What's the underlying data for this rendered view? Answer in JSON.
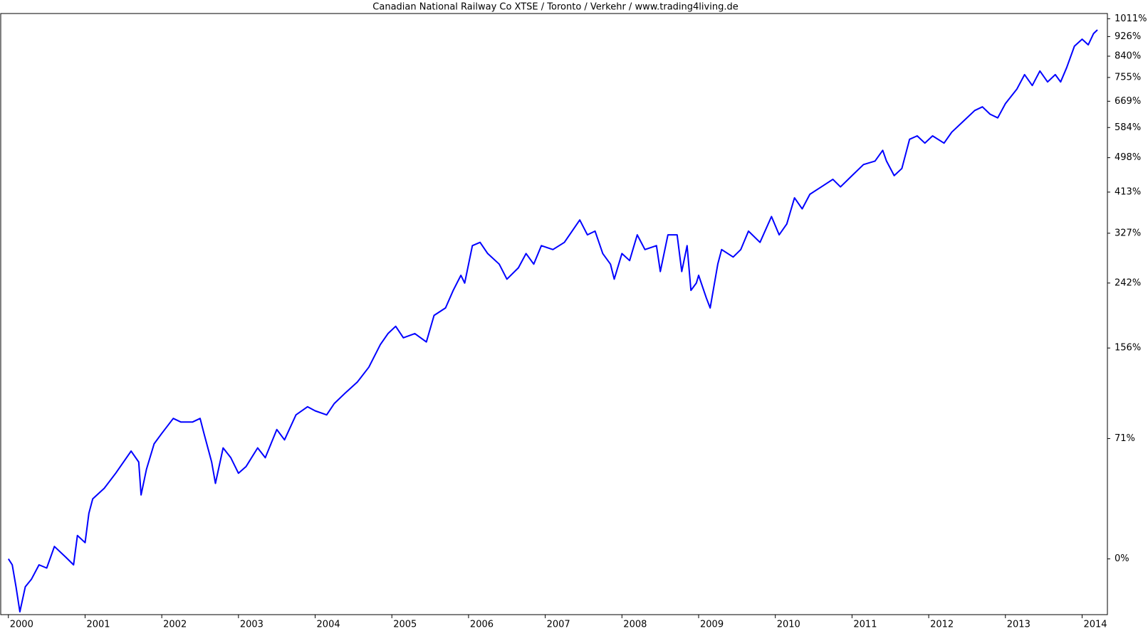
{
  "chart_data": {
    "type": "line",
    "title": "Canadian National Railway Co XTSE / Toronto / Verkehr / www.trading4living.de",
    "y_scale": "log",
    "xlim": [
      1999.9,
      2014.33
    ],
    "xticks": [
      2000,
      2001,
      2002,
      2003,
      2004,
      2005,
      2006,
      2007,
      2008,
      2009,
      2010,
      2011,
      2012,
      2013,
      2014
    ],
    "ylim": [
      -22,
      1037
    ],
    "yticks": [
      {
        "value": 0,
        "label": "0%"
      },
      {
        "value": 71,
        "label": "71%"
      },
      {
        "value": 156,
        "label": "156%"
      },
      {
        "value": 242,
        "label": "242%"
      },
      {
        "value": 327,
        "label": "327%"
      },
      {
        "value": 413,
        "label": "413%"
      },
      {
        "value": 498,
        "label": "498%"
      },
      {
        "value": 584,
        "label": "584%"
      },
      {
        "value": 669,
        "label": "669%"
      },
      {
        "value": 755,
        "label": "755%"
      },
      {
        "value": 840,
        "label": "840%"
      },
      {
        "value": 926,
        "label": "926%"
      },
      {
        "value": 1011,
        "label": "1011%"
      }
    ],
    "series": [
      {
        "color": "#0000ff",
        "x": [
          2000.0,
          2000.05,
          2000.1,
          2000.15,
          2000.22,
          2000.3,
          2000.4,
          2000.5,
          2000.6,
          2000.75,
          2000.85,
          2000.9,
          2001.0,
          2001.05,
          2001.1,
          2001.25,
          2001.4,
          2001.6,
          2001.7,
          2001.73,
          2001.8,
          2001.9,
          2002.0,
          2002.15,
          2002.25,
          2002.4,
          2002.5,
          2002.55,
          2002.65,
          2002.7,
          2002.8,
          2002.9,
          2003.0,
          2003.1,
          2003.25,
          2003.35,
          2003.5,
          2003.6,
          2003.75,
          2003.9,
          2004.0,
          2004.15,
          2004.25,
          2004.4,
          2004.55,
          2004.7,
          2004.85,
          2004.95,
          2005.05,
          2005.15,
          2005.3,
          2005.45,
          2005.55,
          2005.7,
          2005.8,
          2005.9,
          2005.95,
          2006.05,
          2006.15,
          2006.25,
          2006.4,
          2006.5,
          2006.65,
          2006.75,
          2006.85,
          2006.95,
          2007.1,
          2007.25,
          2007.35,
          2007.45,
          2007.55,
          2007.65,
          2007.75,
          2007.85,
          2007.9,
          2008.0,
          2008.1,
          2008.2,
          2008.3,
          2008.45,
          2008.5,
          2008.6,
          2008.72,
          2008.78,
          2008.85,
          2008.9,
          2008.97,
          2009.0,
          2009.1,
          2009.15,
          2009.25,
          2009.3,
          2009.45,
          2009.55,
          2009.65,
          2009.8,
          2009.95,
          2010.05,
          2010.15,
          2010.25,
          2010.35,
          2010.45,
          2010.6,
          2010.75,
          2010.85,
          2011.0,
          2011.15,
          2011.3,
          2011.4,
          2011.45,
          2011.55,
          2011.65,
          2011.75,
          2011.85,
          2011.95,
          2012.05,
          2012.2,
          2012.3,
          2012.45,
          2012.6,
          2012.7,
          2012.8,
          2012.9,
          2013.0,
          2013.15,
          2013.25,
          2013.35,
          2013.45,
          2013.55,
          2013.65,
          2013.72,
          2013.8,
          2013.9,
          2014.0,
          2014.08,
          2014.15,
          2014.2
        ],
        "values": [
          0,
          -2.6,
          -11.7,
          -21,
          -11.7,
          -8.7,
          -2.6,
          -4,
          5.7,
          0.7,
          -2.6,
          11,
          7.5,
          22.5,
          30.7,
          37,
          46.5,
          61.7,
          54,
          33,
          49,
          67,
          75,
          87,
          84,
          84,
          87,
          75,
          54,
          40,
          64,
          57,
          46.5,
          51,
          64,
          57,
          78,
          70,
          90,
          97,
          93.5,
          90,
          100,
          110,
          120,
          135,
          160,
          173,
          182,
          168,
          173,
          163,
          196,
          206,
          231,
          254,
          242,
          304,
          310,
          290,
          272,
          248,
          266,
          290,
          272,
          304,
          297,
          310,
          331,
          353,
          324,
          331,
          290,
          272,
          248,
          290,
          278,
          324,
          297,
          304,
          260,
          324,
          324,
          260,
          304,
          231,
          242,
          254,
          220,
          206,
          272,
          297,
          284,
          297,
          331,
          310,
          360,
          324,
          345,
          400,
          376,
          408,
          425,
          443,
          425,
          452,
          480,
          489,
          518,
          489,
          452,
          470,
          549,
          559,
          538,
          559,
          538,
          570,
          603,
          638,
          650,
          626,
          614,
          661,
          712,
          766,
          725,
          780,
          738,
          766,
          738,
          794,
          883,
          914,
          889,
          940,
          957
        ]
      }
    ]
  }
}
